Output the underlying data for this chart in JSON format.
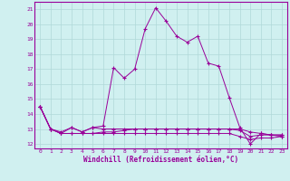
{
  "xlabel": "Windchill (Refroidissement éolien,°C)",
  "bg_color": "#d0f0f0",
  "grid_color": "#b0d8d8",
  "line_color": "#990099",
  "xlim": [
    -0.5,
    23.5
  ],
  "ylim": [
    11.7,
    21.5
  ],
  "yticks": [
    12,
    13,
    14,
    15,
    16,
    17,
    18,
    19,
    20,
    21
  ],
  "xticks": [
    0,
    1,
    2,
    3,
    4,
    5,
    6,
    7,
    8,
    9,
    10,
    11,
    12,
    13,
    14,
    15,
    16,
    17,
    18,
    19,
    20,
    21,
    22,
    23
  ],
  "series": [
    {
      "x": [
        0,
        1,
        2,
        3,
        4,
        5,
        6,
        7,
        8,
        9,
        10,
        11,
        12,
        13,
        14,
        15,
        16,
        17,
        18,
        19,
        20,
        21,
        22,
        23
      ],
      "y": [
        14.5,
        13.0,
        12.8,
        13.1,
        12.8,
        13.1,
        13.2,
        17.1,
        16.4,
        17.0,
        19.7,
        21.1,
        20.2,
        19.2,
        18.8,
        19.2,
        17.4,
        17.2,
        15.1,
        13.1,
        12.0,
        12.7,
        12.6,
        12.6
      ]
    },
    {
      "x": [
        0,
        1,
        2,
        3,
        4,
        5,
        6,
        7,
        8,
        9,
        10,
        11,
        12,
        13,
        14,
        15,
        16,
        17,
        18,
        19,
        20,
        21,
        22,
        23
      ],
      "y": [
        14.5,
        13.0,
        12.7,
        12.7,
        12.7,
        12.7,
        12.8,
        12.8,
        12.9,
        13.0,
        13.0,
        13.0,
        13.0,
        13.0,
        13.0,
        13.0,
        13.0,
        13.0,
        13.0,
        13.0,
        12.8,
        12.7,
        12.6,
        12.6
      ]
    },
    {
      "x": [
        0,
        1,
        2,
        3,
        4,
        5,
        6,
        7,
        8,
        9,
        10,
        11,
        12,
        13,
        14,
        15,
        16,
        17,
        18,
        19,
        20,
        21,
        22,
        23
      ],
      "y": [
        14.5,
        13.0,
        12.7,
        12.7,
        12.7,
        12.7,
        12.7,
        12.7,
        12.7,
        12.7,
        12.7,
        12.7,
        12.7,
        12.7,
        12.7,
        12.7,
        12.7,
        12.7,
        12.7,
        12.5,
        12.3,
        12.4,
        12.4,
        12.5
      ]
    },
    {
      "x": [
        0,
        1,
        2,
        3,
        4,
        5,
        6,
        7,
        8,
        9,
        10,
        11,
        12,
        13,
        14,
        15,
        16,
        17,
        18,
        19,
        20,
        21,
        22,
        23
      ],
      "y": [
        14.5,
        13.0,
        12.7,
        13.1,
        12.8,
        13.1,
        13.0,
        13.0,
        13.0,
        13.0,
        13.0,
        13.0,
        13.0,
        13.0,
        13.0,
        13.0,
        13.0,
        13.0,
        13.0,
        12.9,
        12.5,
        12.6,
        12.6,
        12.5
      ]
    }
  ]
}
